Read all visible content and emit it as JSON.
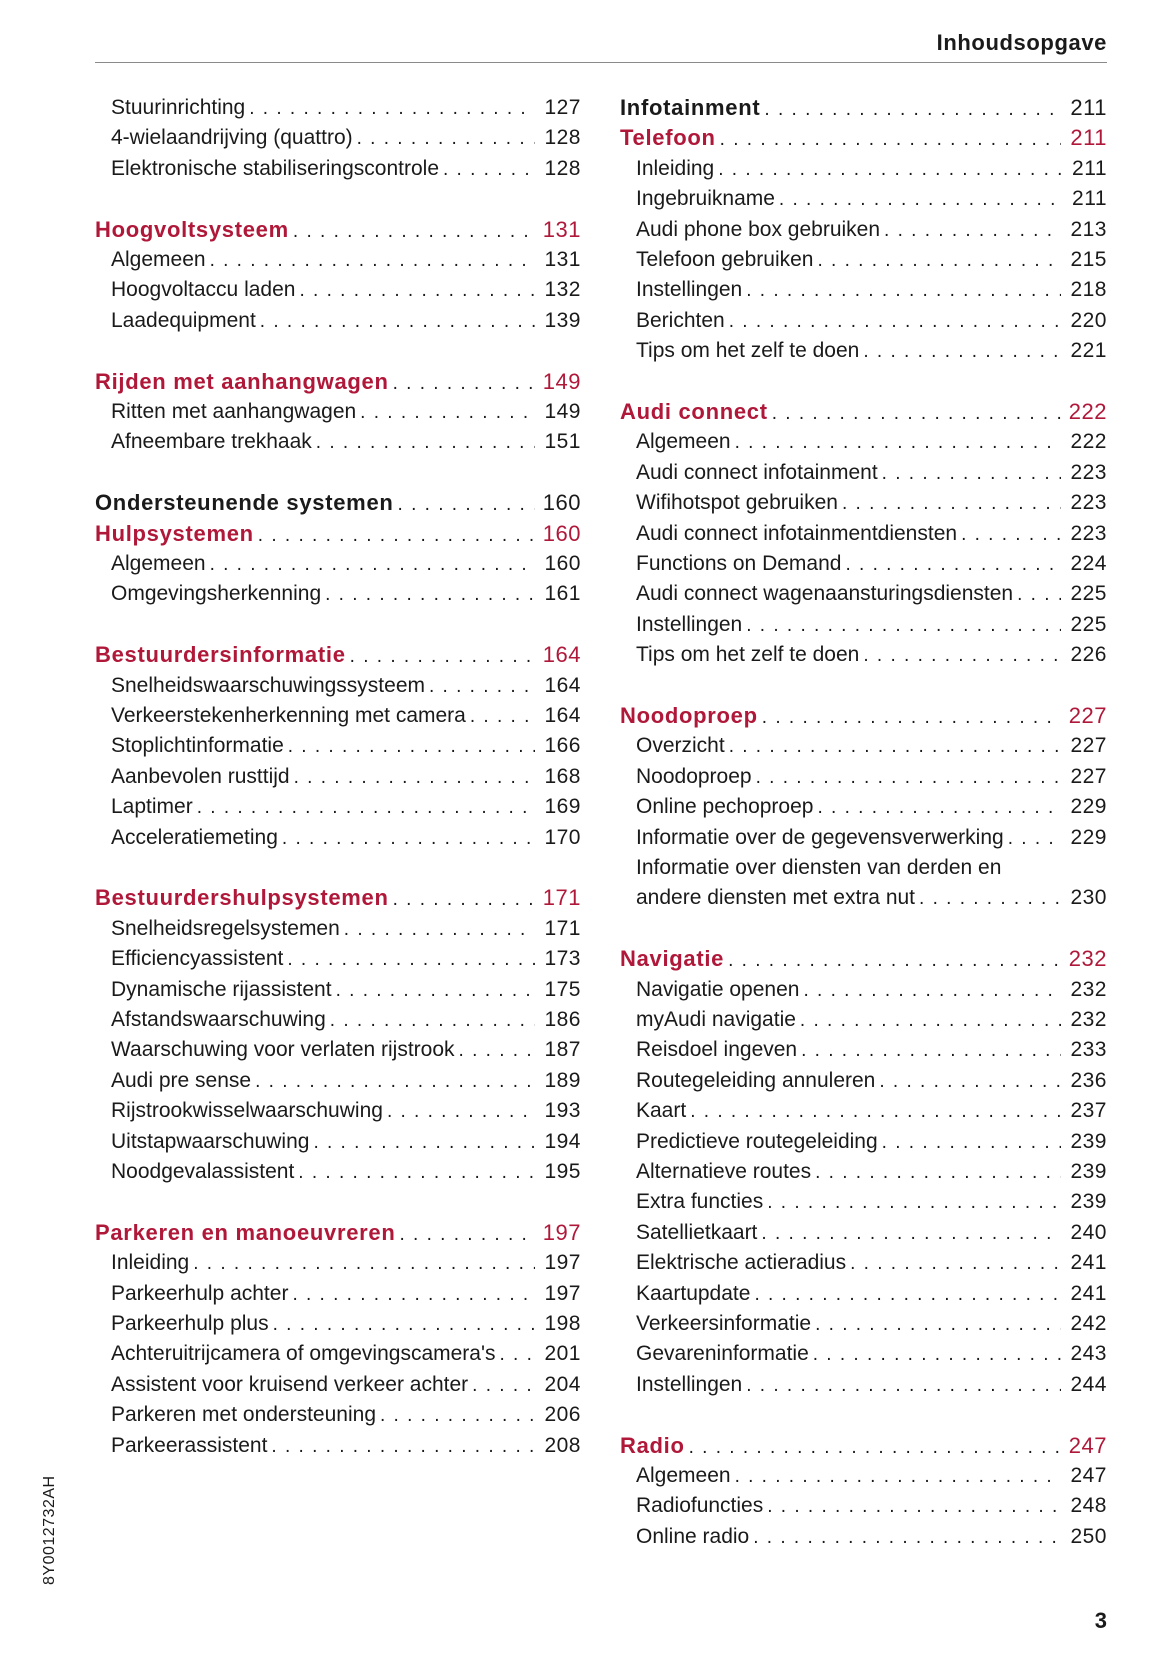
{
  "header": {
    "title": "Inhoudsopgave"
  },
  "colors": {
    "accent": "#b0183a",
    "text": "#1a1a1a"
  },
  "left_column": [
    {
      "type": "item",
      "text": "Stuurinrichting",
      "page": "127"
    },
    {
      "type": "item",
      "text": "4-wielaandrijving (quattro)",
      "page": "128"
    },
    {
      "type": "item",
      "text": "Elektronische stabiliseringscontrole",
      "page": "128"
    },
    {
      "type": "blank"
    },
    {
      "type": "heading-red",
      "text": "Hoogvoltsysteem",
      "page": "131"
    },
    {
      "type": "item",
      "text": "Algemeen",
      "page": "131"
    },
    {
      "type": "item",
      "text": "Hoogvoltaccu laden",
      "page": "132"
    },
    {
      "type": "item",
      "text": "Laadequipment",
      "page": "139"
    },
    {
      "type": "blank"
    },
    {
      "type": "heading-red",
      "text": "Rijden met aanhangwagen",
      "page": "149"
    },
    {
      "type": "item",
      "text": "Ritten met aanhangwagen",
      "page": "149"
    },
    {
      "type": "item",
      "text": "Afneembare trekhaak",
      "page": "151"
    },
    {
      "type": "blank"
    },
    {
      "type": "heading-black",
      "text": "Ondersteunende systemen",
      "page": "160"
    },
    {
      "type": "heading-red",
      "text": "Hulpsystemen",
      "page": "160"
    },
    {
      "type": "item",
      "text": "Algemeen",
      "page": "160"
    },
    {
      "type": "item",
      "text": "Omgevingsherkenning",
      "page": "161"
    },
    {
      "type": "blank"
    },
    {
      "type": "heading-red",
      "text": "Bestuurdersinformatie",
      "page": "164"
    },
    {
      "type": "item",
      "text": "Snelheidswaarschuwingssysteem",
      "page": "164"
    },
    {
      "type": "item",
      "text": "Verkeerstekenherkenning met camera",
      "page": "164"
    },
    {
      "type": "item",
      "text": "Stoplichtinformatie",
      "page": "166"
    },
    {
      "type": "item",
      "text": "Aanbevolen rusttijd",
      "page": "168"
    },
    {
      "type": "item",
      "text": "Laptimer",
      "page": "169"
    },
    {
      "type": "item",
      "text": "Acceleratiemeting",
      "page": "170"
    },
    {
      "type": "blank"
    },
    {
      "type": "heading-red",
      "text": "Bestuurdershulpsystemen",
      "page": "171"
    },
    {
      "type": "item",
      "text": "Snelheidsregelsystemen",
      "page": "171"
    },
    {
      "type": "item",
      "text": "Efficiencyassistent",
      "page": "173"
    },
    {
      "type": "item",
      "text": "Dynamische rijassistent",
      "page": "175"
    },
    {
      "type": "item",
      "text": "Afstandswaarschuwing",
      "page": "186"
    },
    {
      "type": "item",
      "text": "Waarschuwing voor verlaten rijstrook",
      "page": "187"
    },
    {
      "type": "item",
      "text": "Audi pre sense",
      "page": "189"
    },
    {
      "type": "item",
      "text": "Rijstrookwisselwaarschuwing",
      "page": "193"
    },
    {
      "type": "item",
      "text": "Uitstapwaarschuwing",
      "page": "194"
    },
    {
      "type": "item",
      "text": "Noodgevalassistent",
      "page": "195"
    },
    {
      "type": "blank"
    },
    {
      "type": "heading-red",
      "text": "Parkeren en manoeuvreren",
      "page": "197"
    },
    {
      "type": "item",
      "text": "Inleiding",
      "page": "197"
    },
    {
      "type": "item",
      "text": "Parkeerhulp achter",
      "page": "197"
    },
    {
      "type": "item",
      "text": "Parkeerhulp plus",
      "page": "198"
    },
    {
      "type": "item",
      "text": "Achteruitrijcamera of omgevingscamera's",
      "page": "201"
    },
    {
      "type": "item",
      "text": "Assistent voor kruisend verkeer achter",
      "page": "204"
    },
    {
      "type": "item",
      "text": "Parkeren met ondersteuning",
      "page": "206"
    },
    {
      "type": "item",
      "text": "Parkeerassistent",
      "page": "208"
    }
  ],
  "right_column": [
    {
      "type": "heading-black",
      "text": "Infotainment",
      "page": "211"
    },
    {
      "type": "heading-red",
      "text": "Telefoon",
      "page": "211"
    },
    {
      "type": "item",
      "text": "Inleiding",
      "page": "211"
    },
    {
      "type": "item",
      "text": "Ingebruikname",
      "page": "211"
    },
    {
      "type": "item",
      "text": "Audi phone box gebruiken",
      "page": "213"
    },
    {
      "type": "item",
      "text": "Telefoon gebruiken",
      "page": "215"
    },
    {
      "type": "item",
      "text": "Instellingen",
      "page": "218"
    },
    {
      "type": "item",
      "text": "Berichten",
      "page": "220"
    },
    {
      "type": "item",
      "text": "Tips om het zelf te doen",
      "page": "221"
    },
    {
      "type": "blank"
    },
    {
      "type": "heading-red",
      "text": "Audi connect",
      "page": "222"
    },
    {
      "type": "item",
      "text": "Algemeen",
      "page": "222"
    },
    {
      "type": "item",
      "text": "Audi connect infotainment",
      "page": "223"
    },
    {
      "type": "item",
      "text": "Wifihotspot gebruiken",
      "page": "223"
    },
    {
      "type": "item",
      "text": "Audi connect infotainmentdiensten",
      "page": "223"
    },
    {
      "type": "item",
      "text": "Functions on Demand",
      "page": "224"
    },
    {
      "type": "item",
      "text": "Audi connect wagenaansturingsdiensten",
      "page": "225"
    },
    {
      "type": "item",
      "text": "Instellingen",
      "page": "225"
    },
    {
      "type": "item",
      "text": "Tips om het zelf te doen",
      "page": "226"
    },
    {
      "type": "blank"
    },
    {
      "type": "heading-red",
      "text": "Noodoproep",
      "page": "227"
    },
    {
      "type": "item",
      "text": "Overzicht",
      "page": "227"
    },
    {
      "type": "item",
      "text": "Noodoproep",
      "page": "227"
    },
    {
      "type": "item",
      "text": "Online pechoproep",
      "page": "229"
    },
    {
      "type": "item",
      "text": "Informatie over de gegevensverwerking",
      "page": "229"
    },
    {
      "type": "item-cont",
      "text": "Informatie over diensten van derden en"
    },
    {
      "type": "item",
      "text": "andere diensten met extra nut",
      "page": "230"
    },
    {
      "type": "blank"
    },
    {
      "type": "heading-red",
      "text": "Navigatie",
      "page": "232"
    },
    {
      "type": "item",
      "text": "Navigatie openen",
      "page": "232"
    },
    {
      "type": "item",
      "text": "myAudi navigatie",
      "page": "232"
    },
    {
      "type": "item",
      "text": "Reisdoel ingeven",
      "page": "233"
    },
    {
      "type": "item",
      "text": "Routegeleiding annuleren",
      "page": "236"
    },
    {
      "type": "item",
      "text": "Kaart",
      "page": "237"
    },
    {
      "type": "item",
      "text": "Predictieve routegeleiding",
      "page": "239"
    },
    {
      "type": "item",
      "text": "Alternatieve routes",
      "page": "239"
    },
    {
      "type": "item",
      "text": "Extra functies",
      "page": "239"
    },
    {
      "type": "item",
      "text": "Satellietkaart",
      "page": "240"
    },
    {
      "type": "item",
      "text": "Elektrische actieradius",
      "page": "241"
    },
    {
      "type": "item",
      "text": "Kaartupdate",
      "page": "241"
    },
    {
      "type": "item",
      "text": "Verkeersinformatie",
      "page": "242"
    },
    {
      "type": "item",
      "text": "Gevareninformatie",
      "page": "243"
    },
    {
      "type": "item",
      "text": "Instellingen",
      "page": "244"
    },
    {
      "type": "blank"
    },
    {
      "type": "heading-red",
      "text": "Radio",
      "page": "247"
    },
    {
      "type": "item",
      "text": "Algemeen",
      "page": "247"
    },
    {
      "type": "item",
      "text": "Radiofuncties",
      "page": "248"
    },
    {
      "type": "item",
      "text": "Online radio",
      "page": "250"
    }
  ],
  "footer": {
    "document_code": "8Y0012732AH",
    "page_number": "3"
  }
}
